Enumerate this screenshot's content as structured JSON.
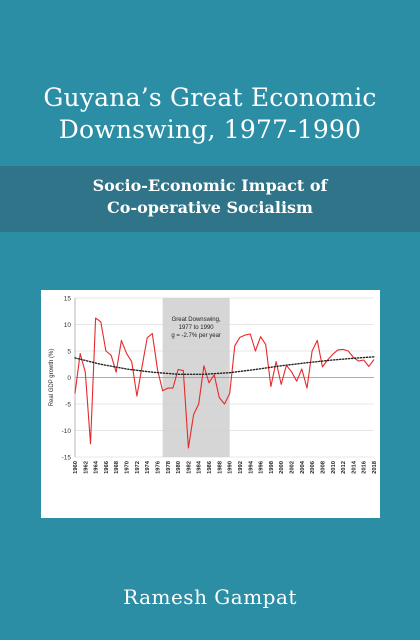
{
  "cover": {
    "title_line1": "Guyana’s Great Economic",
    "title_line2": "Downswing, 1977-1990",
    "subtitle_line1": "Socio-Economic Impact of",
    "subtitle_line2": "Co-operative Socialism",
    "author": "Ramesh Gampat",
    "background_color": "#2b8ea5",
    "band_color": "#2f7488"
  },
  "chart_data": {
    "type": "line",
    "title": "",
    "xlabel": "",
    "ylabel": "Real GDP growth (%)",
    "ylim": [
      -15,
      15
    ],
    "yticks": [
      15,
      10,
      5,
      0,
      -5,
      -10,
      -15
    ],
    "xlim": [
      1960,
      2018
    ],
    "xticks": [
      "1960",
      "1962",
      "1964",
      "1966",
      "1968",
      "1970",
      "1972",
      "1974",
      "1976",
      "1978",
      "1980",
      "1982",
      "1984",
      "1986",
      "1988",
      "1990",
      "1992",
      "1994",
      "1996",
      "1998",
      "2000",
      "2002",
      "2004",
      "2006",
      "2008",
      "2010",
      "2012",
      "2014",
      "2016",
      "2018"
    ],
    "grid": true,
    "annotation": {
      "line1": "Great Downswing,",
      "line2": "1977 to 1990",
      "line3": "g = -2.7%  per year",
      "shade_from": 1977,
      "shade_to": 1990
    },
    "series": [
      {
        "name": "",
        "color": "#e8292b",
        "x": [
          1960,
          1961,
          1962,
          1963,
          1964,
          1965,
          1966,
          1967,
          1968,
          1969,
          1970,
          1971,
          1972,
          1973,
          1974,
          1975,
          1976,
          1977,
          1978,
          1979,
          1980,
          1981,
          1982,
          1983,
          1984,
          1985,
          1986,
          1987,
          1988,
          1989,
          1990,
          1991,
          1992,
          1993,
          1994,
          1995,
          1996,
          1997,
          1998,
          1999,
          2000,
          2001,
          2002,
          2003,
          2004,
          2005,
          2006,
          2007,
          2008,
          2009,
          2010,
          2011,
          2012,
          2013,
          2014,
          2015,
          2016,
          2017,
          2018
        ],
        "values": [
          -3,
          4.5,
          1,
          -12.5,
          11.2,
          10.5,
          5,
          4.2,
          1,
          7,
          4.5,
          3,
          -3.5,
          2,
          7.5,
          8.3,
          1.5,
          -2.5,
          -2,
          -2,
          1.5,
          1.3,
          -13.3,
          -7,
          -5,
          2.2,
          -1,
          0.5,
          -3.8,
          -5,
          -3,
          6,
          7.6,
          8,
          8.2,
          5,
          7.7,
          6.2,
          -1.7,
          3,
          -1.3,
          2.3,
          1.1,
          -0.7,
          1.6,
          -2,
          5,
          7,
          2,
          3.3,
          4.4,
          5.2,
          5.3,
          5,
          3.8,
          3.1,
          3.3,
          2.1,
          3.4
        ]
      },
      {
        "name": "",
        "color": "#222222",
        "style": "dotted",
        "x": [
          1960,
          1965,
          1970,
          1975,
          1980,
          1985,
          1990,
          1995,
          2000,
          2005,
          2010,
          2015,
          2018
        ],
        "values": [
          3.7,
          2.5,
          1.6,
          1,
          0.6,
          0.6,
          0.9,
          1.5,
          2.2,
          2.8,
          3.3,
          3.7,
          3.9
        ]
      }
    ]
  }
}
